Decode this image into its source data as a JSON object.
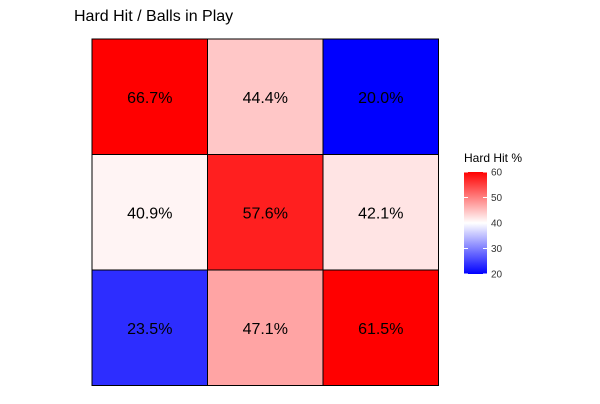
{
  "chart_data": {
    "type": "heatmap",
    "title": "Hard Hit / Balls in Play",
    "rows": 3,
    "cols": 3,
    "cells": [
      [
        66.7,
        44.4,
        20.0
      ],
      [
        40.9,
        57.6,
        42.1
      ],
      [
        23.5,
        47.1,
        61.5
      ]
    ],
    "cell_labels": [
      [
        "66.7%",
        "44.4%",
        "20.0%"
      ],
      [
        "40.9%",
        "57.6%",
        "42.1%"
      ],
      [
        "23.5%",
        "47.1%",
        "61.5%"
      ]
    ],
    "legend": {
      "title": "Hard Hit %",
      "min": 20,
      "mid": 40,
      "max": 60,
      "ticks": [
        60,
        50,
        40,
        30,
        20
      ],
      "tick_labels": [
        "60",
        "50",
        "40",
        "30",
        "20"
      ],
      "position": "right"
    },
    "colors": {
      "low": "#0000ff",
      "mid": "#ffffff",
      "high": "#ff0000"
    }
  }
}
